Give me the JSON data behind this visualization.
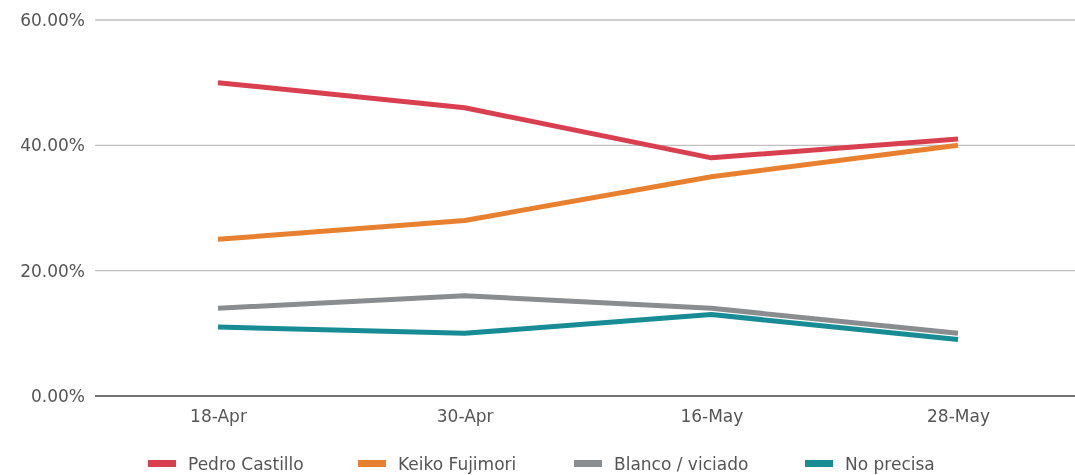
{
  "chart_data": {
    "type": "line",
    "categories": [
      "18-Apr",
      "30-Apr",
      "16-May",
      "28-May"
    ],
    "series": [
      {
        "name": "Pedro Castillo",
        "color": "#d9404f",
        "values": [
          50,
          46,
          38,
          41
        ]
      },
      {
        "name": "Keiko Fujimori",
        "color": "#e8812f",
        "values": [
          25,
          28,
          35,
          40
        ]
      },
      {
        "name": "Blanco / viciado",
        "color": "#8a8d8f",
        "values": [
          14,
          16,
          14,
          10
        ]
      },
      {
        "name": "No precisa",
        "color": "#178c95",
        "values": [
          11,
          10,
          13,
          9
        ]
      }
    ],
    "ylim": [
      0,
      60
    ],
    "yticks": [
      {
        "value": 0,
        "label": "0.00%"
      },
      {
        "value": 20,
        "label": "20.00%"
      },
      {
        "value": 40,
        "label": "40.00%"
      },
      {
        "value": 60,
        "label": "60.00%"
      }
    ],
    "grid": "y",
    "legend": "bottom",
    "marker": "none",
    "line_style": "solid"
  }
}
